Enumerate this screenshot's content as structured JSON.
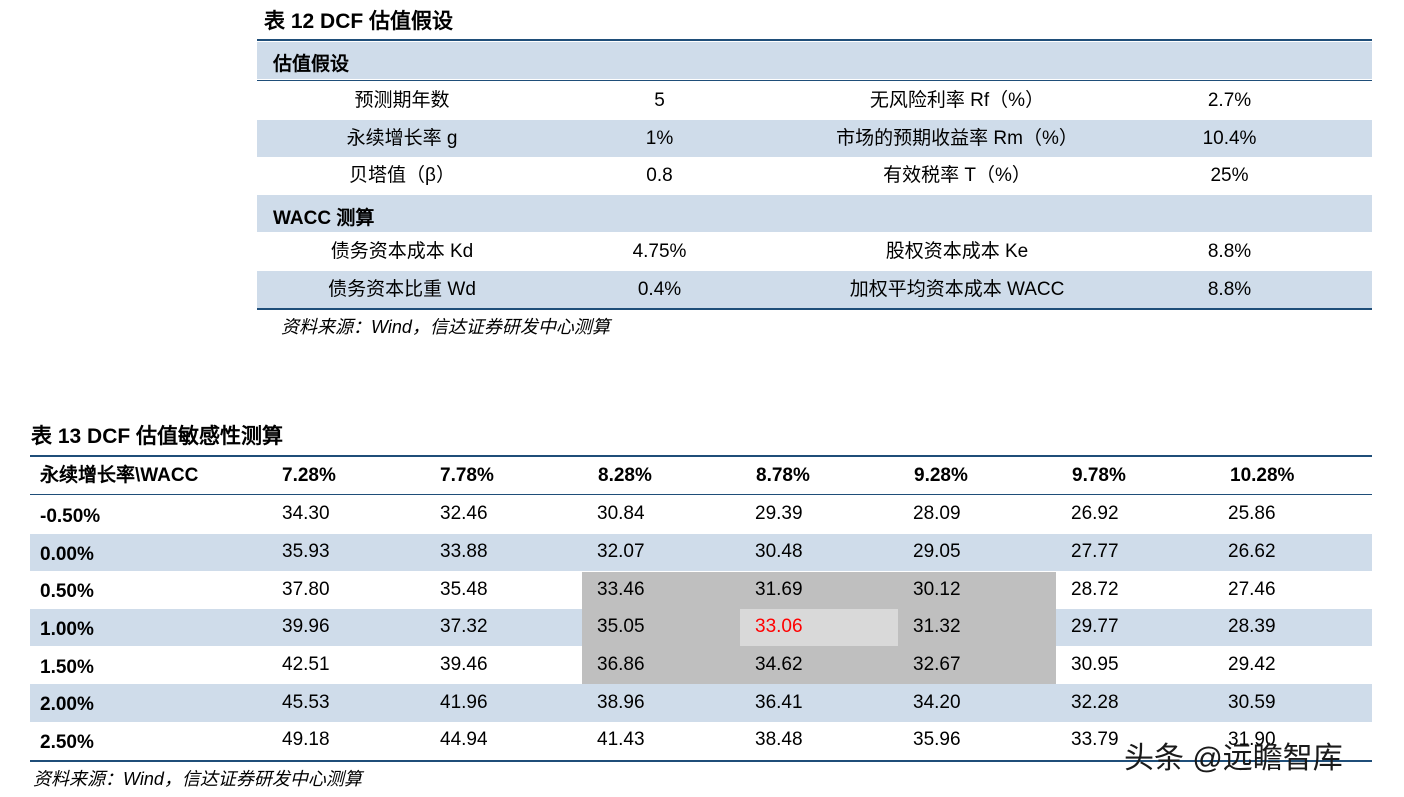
{
  "table12": {
    "title": "表 12  DCF 估值假设",
    "section1": "估值假设",
    "section2": "WACC 测算",
    "rows1": [
      {
        "label1": "预测期年数",
        "value1": "5",
        "label2": "无风险利率 Rf（%）",
        "value2": "2.7%"
      },
      {
        "label1": "永续增长率 g",
        "value1": "1%",
        "label2": "市场的预期收益率 Rm（%）",
        "value2": "10.4%"
      },
      {
        "label1": "贝塔值（β）",
        "value1": "0.8",
        "label2": "有效税率 T（%）",
        "value2": "25%"
      }
    ],
    "rows2": [
      {
        "label1": "债务资本成本 Kd",
        "value1": "4.75%",
        "label2": "股权资本成本 Ke",
        "value2": "8.8%"
      },
      {
        "label1": "债务资本比重 Wd",
        "value1": "0.4%",
        "label2": "加权平均资本成本 WACC",
        "value2": "8.8%"
      }
    ],
    "source": "资料来源：Wind，信达证券研发中心测算"
  },
  "table13": {
    "title": "表 13  DCF 估值敏感性测算",
    "corner": "永续增长率\\WACC",
    "headers": [
      "7.28%",
      "7.78%",
      "8.28%",
      "8.78%",
      "9.28%",
      "9.78%",
      "10.28%"
    ],
    "rows": [
      {
        "label": "-0.50%",
        "values": [
          "34.30",
          "32.46",
          "30.84",
          "29.39",
          "28.09",
          "26.92",
          "25.86"
        ]
      },
      {
        "label": "0.00%",
        "values": [
          "35.93",
          "33.88",
          "32.07",
          "30.48",
          "29.05",
          "27.77",
          "26.62"
        ]
      },
      {
        "label": "0.50%",
        "values": [
          "37.80",
          "35.48",
          "33.46",
          "31.69",
          "30.12",
          "28.72",
          "27.46"
        ]
      },
      {
        "label": "1.00%",
        "values": [
          "39.96",
          "37.32",
          "35.05",
          "33.06",
          "31.32",
          "29.77",
          "28.39"
        ]
      },
      {
        "label": "1.50%",
        "values": [
          "42.51",
          "39.46",
          "36.86",
          "34.62",
          "32.67",
          "30.95",
          "29.42"
        ]
      },
      {
        "label": "2.00%",
        "values": [
          "45.53",
          "41.96",
          "38.96",
          "36.41",
          "34.20",
          "32.28",
          "30.59"
        ]
      },
      {
        "label": "2.50%",
        "values": [
          "49.18",
          "44.94",
          "41.43",
          "38.48",
          "35.96",
          "33.79",
          "31.90"
        ]
      }
    ],
    "source": "资料来源：Wind，信达证券研发中心测算"
  },
  "watermark": "头条 @远瞻智库",
  "colors": {
    "highlight_text": "#ff0000",
    "band": "#cfdcea",
    "sensitivity_zone": "#bfbfbf"
  }
}
